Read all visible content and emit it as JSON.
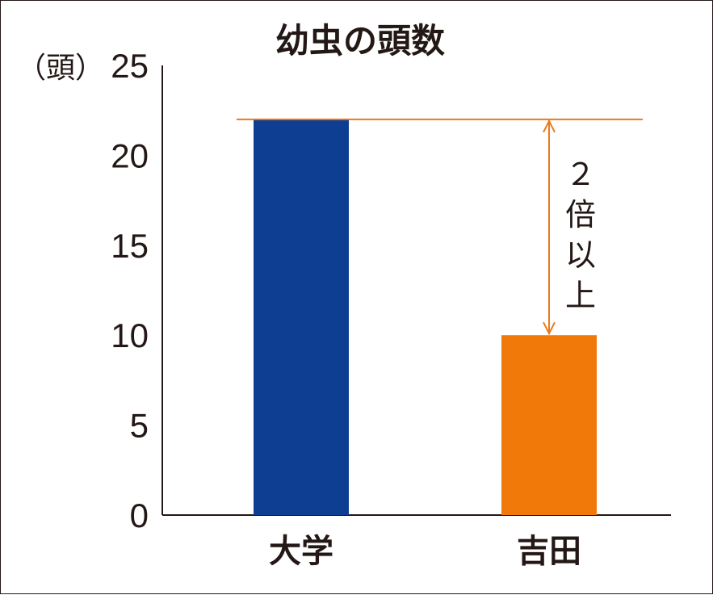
{
  "chart_data": {
    "type": "bar",
    "title": "幼虫の頭数",
    "ylabel": "（頭）",
    "xlabel": "",
    "categories": [
      "大学",
      "吉田"
    ],
    "values": [
      22,
      10
    ],
    "colors": [
      "#0e3e92",
      "#f0790a"
    ],
    "ylim": [
      0,
      25
    ],
    "yticks": [
      "0",
      "5",
      "10",
      "15",
      "20",
      "25"
    ],
    "grid": false,
    "annotation": {
      "text": "２倍以上",
      "from_value": 22,
      "to_value": 10,
      "color": "#ec7a1c"
    }
  }
}
